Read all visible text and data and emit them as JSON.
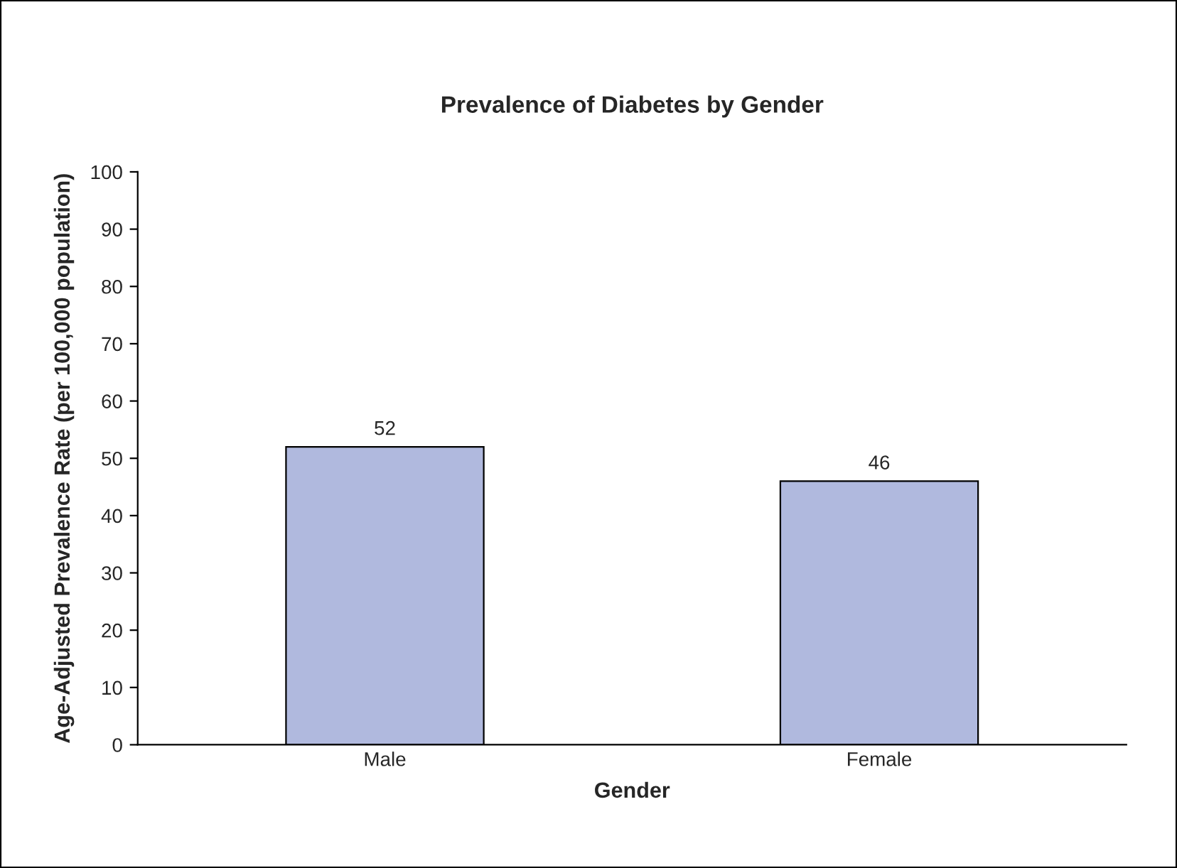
{
  "chart_data": {
    "type": "bar",
    "title": "Prevalence of Diabetes by Gender",
    "xlabel": "Gender",
    "ylabel": "Age-Adjusted Prevalence Rate (per 100,000 population)",
    "categories": [
      "Male",
      "Female"
    ],
    "values": [
      52,
      46
    ],
    "color": "#b0b9de",
    "ylim": [
      0,
      100
    ],
    "yticks": [
      0,
      10,
      20,
      30,
      40,
      50,
      60,
      70,
      80,
      90,
      100
    ],
    "grid": false,
    "legend": false,
    "data_labels": true
  }
}
